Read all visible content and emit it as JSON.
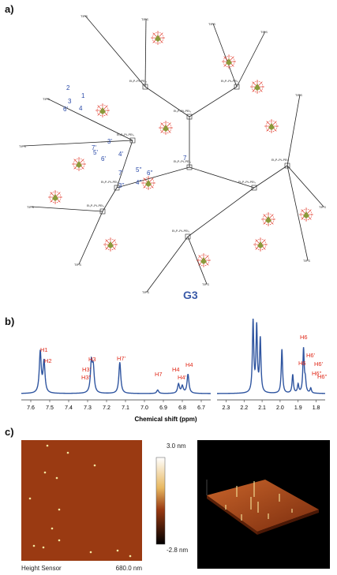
{
  "panels": {
    "a": "a)",
    "b": "b)",
    "c": "c)"
  },
  "molecule": {
    "label": "G3",
    "group_tips": "TIPS",
    "group_et": "Et₃P",
    "group_pt": "Pt",
    "group_pet": "PEt₃",
    "atom_labels": [
      "1",
      "2",
      "3",
      "4",
      "6'",
      "7'",
      "3'",
      "5'",
      "6'",
      "4'",
      "7'",
      "3''",
      "5''",
      "6''",
      "4''",
      "7"
    ],
    "colors": {
      "blue": "#2a4aa8",
      "red": "#e03020",
      "olive": "#8a9a3a",
      "ink": "#222222"
    }
  },
  "nmr": {
    "xlabel": "Chemical shift (ppm)",
    "left_ticks": [
      "7.6",
      "7.5",
      "7.4",
      "7.3",
      "7.2",
      "7.1",
      "7.0",
      "6.9",
      "6.8",
      "6.7"
    ],
    "right_ticks": [
      "2.3",
      "2.2",
      "2.1",
      "2.0",
      "1.9",
      "1.8"
    ],
    "peak_labels": [
      "H1",
      "H2",
      "H3",
      "H3'",
      "H3''",
      "H7'",
      "H7",
      "H4",
      "H4'",
      "H4",
      "H6",
      "H6'",
      "H6",
      "H6''",
      "H6'",
      "H6''"
    ],
    "line_color": "#2f55a0",
    "label_color": "#e02a1a",
    "chart_data": {
      "type": "line",
      "xlabel": "Chemical shift (ppm)",
      "series": [
        {
          "x": [
            7.55,
            7.53,
            7.28,
            7.27,
            7.13,
            6.93,
            6.82,
            6.8,
            6.77
          ],
          "values": [
            0.58,
            0.44,
            0.42,
            0.33,
            0.44,
            0.05,
            0.13,
            0.1,
            0.27
          ]
        },
        {
          "x": [
            2.15,
            2.13,
            2.11,
            1.99,
            1.93,
            1.9,
            1.87,
            1.86,
            1.83
          ],
          "values": [
            1.0,
            0.92,
            0.75,
            0.62,
            0.26,
            0.12,
            0.62,
            0.16,
            0.07
          ]
        }
      ]
    }
  },
  "afm": {
    "scale_max": "3.0 nm",
    "scale_min": "-2.8 nm",
    "caption_left": "Height Sensor",
    "caption_right": "680.0 nm",
    "colors": {
      "bg": "#9a3a12",
      "spot": "#f4e8a0",
      "dark": "#000000"
    }
  }
}
